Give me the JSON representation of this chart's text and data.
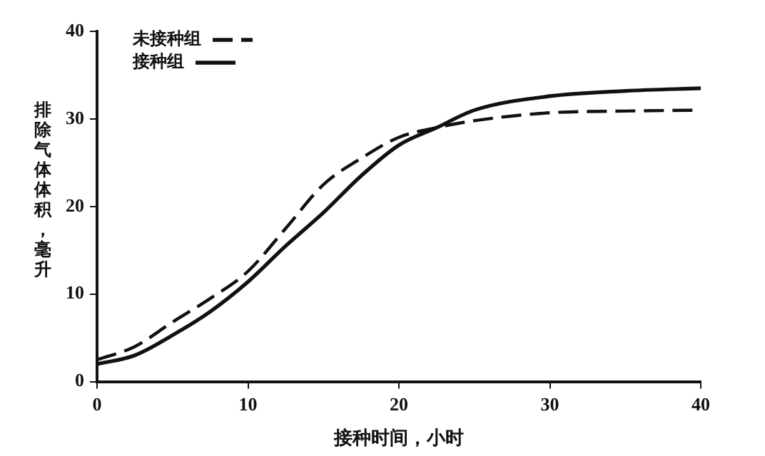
{
  "chart_data": {
    "type": "line",
    "xlabel": "接种时间，小时",
    "ylabel": "排除气体体积，毫升",
    "x": [
      0,
      2.5,
      5,
      7.5,
      10,
      12.5,
      15,
      17.5,
      20,
      22.5,
      25,
      30,
      35,
      40
    ],
    "series": [
      {
        "name": "未接种组",
        "color": "#111111",
        "line_style": "dashed",
        "values": [
          2.5,
          4,
          6.8,
          9.5,
          12.6,
          17.5,
          22.5,
          25.5,
          27.9,
          29,
          29.8,
          30.7,
          30.9,
          31
        ]
      },
      {
        "name": "接种组",
        "color": "#111111",
        "line_style": "solid",
        "values": [
          2,
          3,
          5.3,
          8,
          11.4,
          15.5,
          19.3,
          23.5,
          27,
          29,
          31,
          32.6,
          33.2,
          33.5
        ]
      }
    ],
    "xlim": [
      0,
      40
    ],
    "xticks": [
      0,
      10,
      20,
      30,
      40
    ],
    "ylim": [
      0,
      40
    ],
    "yticks": [
      0,
      10,
      20,
      30,
      40
    ],
    "grid": false,
    "legend": "top left",
    "marker": "none"
  }
}
